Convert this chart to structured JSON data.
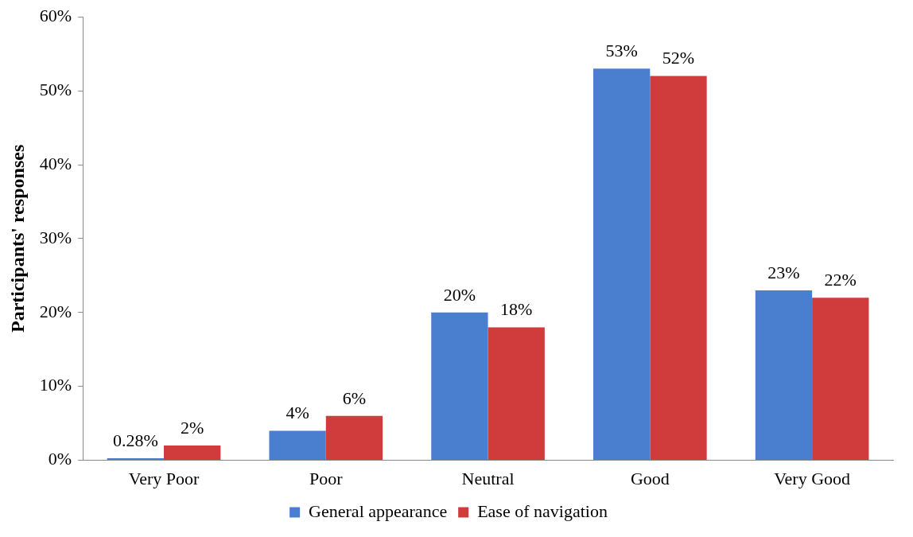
{
  "chart_data": {
    "type": "bar",
    "ylabel": "Participants' responses",
    "categories": [
      "Very Poor",
      "Poor",
      "Neutral",
      "Good",
      "Very Good"
    ],
    "series": [
      {
        "name": "General appearance",
        "color": "#4a7fd0",
        "values": [
          0.28,
          4,
          20,
          53,
          23
        ],
        "value_labels": [
          "0.28%",
          "4%",
          "20%",
          "53%",
          "23%"
        ]
      },
      {
        "name": "Ease of navigation",
        "color": "#d03c3c",
        "values": [
          2,
          6,
          18,
          52,
          22
        ],
        "value_labels": [
          "2%",
          "6%",
          "18%",
          "52%",
          "22%"
        ]
      }
    ],
    "ylim": [
      0,
      60
    ],
    "yticks": [
      {
        "value": 0,
        "label": "0%"
      },
      {
        "value": 10,
        "label": "10%"
      },
      {
        "value": 20,
        "label": "20%"
      },
      {
        "value": 30,
        "label": "30%"
      },
      {
        "value": 40,
        "label": "40%"
      },
      {
        "value": 50,
        "label": "50%"
      },
      {
        "value": 60,
        "label": "60%"
      }
    ],
    "grid": false,
    "legend": "bottom"
  }
}
